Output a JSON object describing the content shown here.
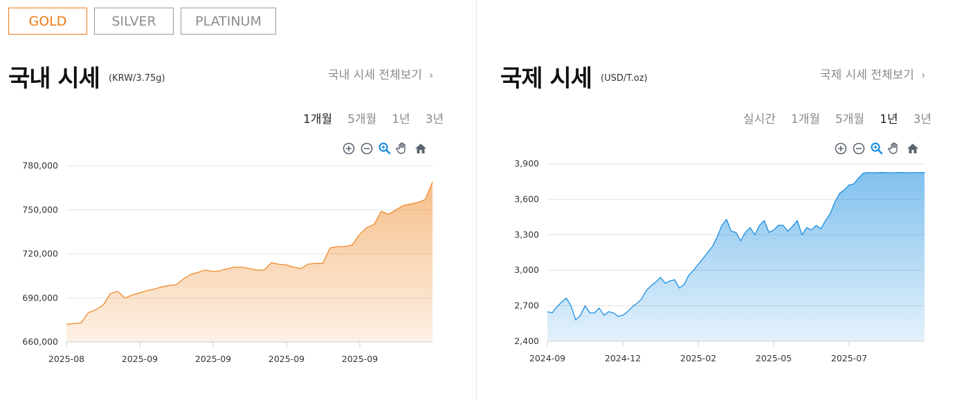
{
  "tabs": [
    {
      "label": "GOLD",
      "active": true
    },
    {
      "label": "SILVER",
      "active": false
    },
    {
      "label": "PLATINUM",
      "active": false
    }
  ],
  "domestic": {
    "title": "국내 시세",
    "unit": "(KRW/3.75g)",
    "view_all": "국내 시세 전체보기",
    "periods": [
      "1개월",
      "5개월",
      "1년",
      "3년"
    ],
    "selected_period": "1개월"
  },
  "international": {
    "title": "국제 시세",
    "unit": "(USD/T.oz)",
    "view_all": "국제 시세 전체보기",
    "periods": [
      "실시간",
      "1개월",
      "5개월",
      "1년",
      "3년"
    ],
    "selected_period": "1년"
  },
  "toolbar_icons": [
    "zoom-in-icon",
    "zoom-out-icon",
    "magnify-icon",
    "pan-hand-icon",
    "home-icon"
  ],
  "colors": {
    "accent": "#ee7a14",
    "domestic_line": "#ee8a2a",
    "international_line": "#1a8ee0"
  },
  "chart_data": [
    {
      "type": "area",
      "ylim": [
        660000,
        780000
      ],
      "yticks": [
        660000,
        690000,
        720000,
        750000,
        780000
      ],
      "ytick_labels": [
        "660,000",
        "690,000",
        "720,000",
        "750,000",
        "780,000"
      ],
      "xtick_labels": [
        "2025-08",
        "2025-09",
        "2025-09",
        "2025-09",
        "2025-09"
      ],
      "grid": true,
      "series": [
        {
          "x": [
            0,
            0.5,
            1,
            1.5,
            2,
            2.5,
            3,
            3.5,
            4,
            4.5,
            5,
            5.5,
            6,
            6.5,
            7,
            7.5,
            8,
            8.5,
            9,
            9.5,
            10,
            10.5,
            11,
            11.5,
            12,
            12.5,
            13,
            13.5,
            14,
            14.5,
            15,
            15.5,
            16,
            16.5,
            17,
            17.5,
            18,
            18.5,
            19,
            19.5,
            20,
            20.5,
            21,
            21.5,
            22,
            22.5,
            23,
            23.5,
            24,
            24.5,
            25
          ],
          "y": [
            672000,
            672500,
            673000,
            680000,
            682000,
            685000,
            693000,
            694500,
            690000,
            692000,
            693500,
            695000,
            696000,
            697500,
            698500,
            699000,
            703000,
            706000,
            707500,
            709000,
            708000,
            708500,
            710000,
            711000,
            711000,
            710000,
            709000,
            709000,
            714000,
            713000,
            712500,
            711000,
            710000,
            713000,
            713500,
            713500,
            724000,
            725000,
            725000,
            726000,
            733000,
            738000,
            740000,
            749000,
            747000,
            750000,
            753000,
            754000,
            755000,
            757000,
            769000
          ]
        }
      ]
    },
    {
      "type": "area",
      "ylim": [
        2400,
        3900
      ],
      "yticks": [
        2400,
        2700,
        3000,
        3300,
        3600,
        3900
      ],
      "ytick_labels": [
        "2,400",
        "2,700",
        "3,000",
        "3,300",
        "3,600",
        "3,900"
      ],
      "xtick_labels": [
        "2024-09",
        "2024-12",
        "2025-02",
        "2025-05",
        "2025-07"
      ],
      "grid": true,
      "series": [
        {
          "x": [
            0,
            0.25,
            0.5,
            0.75,
            1,
            1.25,
            1.5,
            1.75,
            2,
            2.25,
            2.5,
            2.75,
            3,
            3.25,
            3.5,
            3.75,
            4,
            4.25,
            4.5,
            4.75,
            5,
            5.25,
            5.5,
            5.75,
            6,
            6.25,
            6.5,
            6.75,
            7,
            7.25,
            7.5,
            7.75,
            8,
            8.25,
            8.5,
            8.75,
            9,
            9.25,
            9.5,
            9.75,
            10,
            10.25,
            10.5,
            10.75,
            11,
            11.25,
            11.5,
            11.75,
            12,
            12.25,
            12.5,
            12.75,
            13,
            13.25,
            13.5,
            13.75,
            14,
            14.25,
            14.5,
            14.75,
            15,
            15.25,
            15.5,
            15.75,
            16,
            16.25,
            16.5,
            16.75,
            17,
            17.25,
            17.5,
            17.75,
            18,
            18.25,
            18.5,
            18.75,
            19,
            19.25,
            19.5,
            19.75,
            20
          ],
          "y": [
            2650,
            2640,
            2690,
            2730,
            2765,
            2700,
            2580,
            2620,
            2700,
            2640,
            2640,
            2680,
            2620,
            2650,
            2640,
            2610,
            2620,
            2650,
            2690,
            2720,
            2760,
            2830,
            2870,
            2900,
            2940,
            2890,
            2910,
            2920,
            2850,
            2880,
            2960,
            3000,
            3050,
            3100,
            3150,
            3200,
            3280,
            3380,
            3430,
            3330,
            3320,
            3250,
            3320,
            3360,
            3300,
            3380,
            3420,
            3320,
            3340,
            3380,
            3380,
            3330,
            3370,
            3420,
            3300,
            3360,
            3340,
            3380,
            3350,
            3420,
            3480,
            3580,
            3650,
            3680,
            3720,
            3730,
            3780,
            3820,
            3825,
            3823,
            3825,
            3826,
            3825,
            3824,
            3825,
            3826,
            3825,
            3824,
            3825,
            3825,
            3826
          ]
        }
      ]
    }
  ]
}
